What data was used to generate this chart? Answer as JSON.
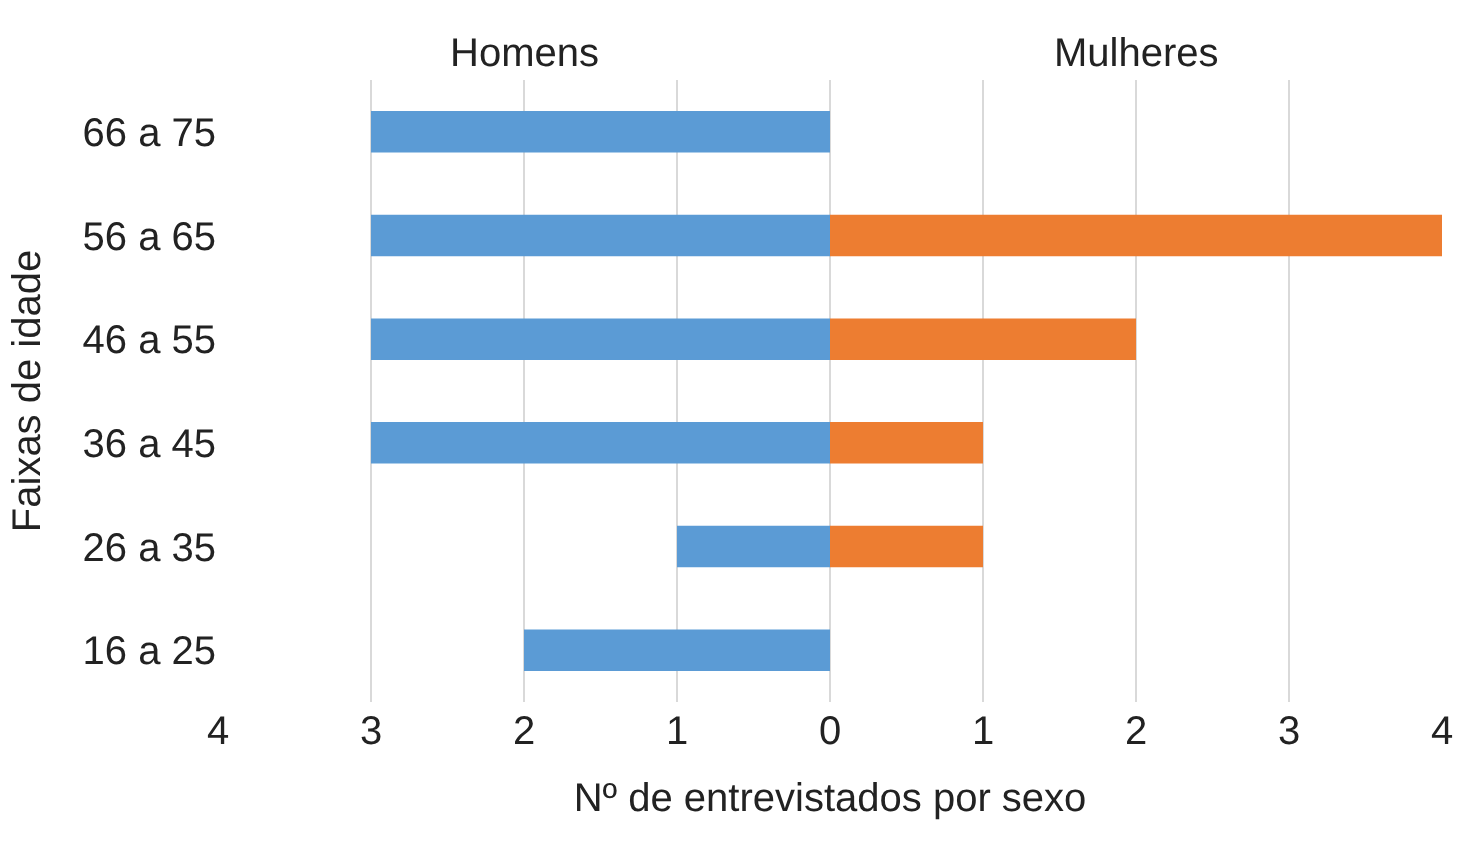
{
  "chart_data": {
    "type": "bar",
    "orientation": "horizontal",
    "stacked": true,
    "xlabel": "Nº de entrevistados por sexo",
    "ylabel": "Faixas de idade",
    "annotations": [
      "Homens",
      "Mulheres"
    ],
    "categories": [
      "66 a 75",
      "56 a 65",
      "46 a 55",
      "36 a 45",
      "26 a 35",
      "16 a 25"
    ],
    "series": [
      {
        "color": "#5b9bd5",
        "values": [
          -3,
          -3,
          -3,
          -3,
          -1,
          -2
        ]
      },
      {
        "color": "#ed7d31",
        "values": [
          null,
          4,
          2,
          1,
          1,
          null
        ]
      }
    ],
    "xlim": [
      -4,
      4
    ],
    "xticks": [
      {
        "value": -4,
        "label": "4"
      },
      {
        "value": -3,
        "label": "3"
      },
      {
        "value": -2,
        "label": "2"
      },
      {
        "value": -1,
        "label": "1"
      },
      0,
      1,
      2,
      3,
      4
    ],
    "grid": "x"
  }
}
